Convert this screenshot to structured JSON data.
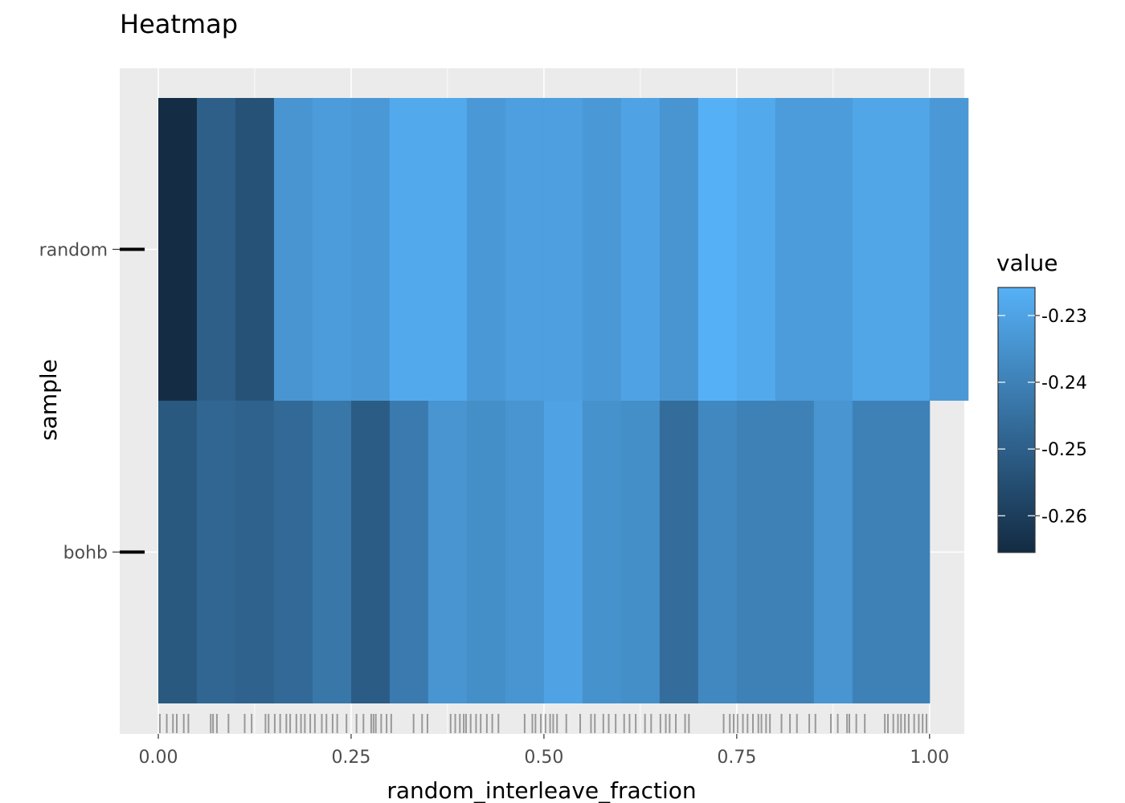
{
  "chart_data": {
    "type": "heatmap",
    "title": "Heatmap",
    "xlabel": "random_interleave_fraction",
    "ylabel": "sample",
    "x_ticks": [
      0.0,
      0.25,
      0.5,
      0.75,
      1.0
    ],
    "x_tick_labels": [
      "0.00",
      "0.25",
      "0.50",
      "0.75",
      "1.00"
    ],
    "xlim": [
      -0.05,
      1.045
    ],
    "categories": [
      "bohb",
      "random"
    ],
    "tile_width": 0.05,
    "grid": true,
    "legend": {
      "title": "value",
      "placement": "right",
      "range": [
        -0.2655,
        -0.2258
      ],
      "ticks": [
        -0.23,
        -0.24,
        -0.25,
        -0.26
      ],
      "tick_labels": [
        "-0.23",
        "-0.24",
        "-0.25",
        "-0.26"
      ],
      "color_low": "#132B43",
      "color_high": "#56B1F7"
    },
    "series": [
      {
        "name": "random",
        "x": [
          0.0,
          0.05,
          0.1,
          0.15,
          0.2,
          0.25,
          0.3,
          0.35,
          0.4,
          0.45,
          0.5,
          0.55,
          0.6,
          0.65,
          0.7,
          0.75,
          0.8,
          0.85,
          0.9,
          0.95,
          1.0
        ],
        "values": [
          -0.265,
          -0.25,
          -0.254,
          -0.234,
          -0.232,
          -0.233,
          -0.228,
          -0.228,
          -0.233,
          -0.231,
          -0.231,
          -0.233,
          -0.23,
          -0.234,
          -0.226,
          -0.228,
          -0.232,
          -0.232,
          -0.229,
          -0.229,
          -0.233
        ]
      },
      {
        "name": "bohb",
        "x": [
          0.0,
          0.05,
          0.1,
          0.15,
          0.2,
          0.25,
          0.3,
          0.35,
          0.4,
          0.45,
          0.5,
          0.55,
          0.6,
          0.65,
          0.7,
          0.75,
          0.8,
          0.85,
          0.9,
          0.95
        ],
        "values": [
          -0.252,
          -0.248,
          -0.249,
          -0.247,
          -0.243,
          -0.251,
          -0.242,
          -0.234,
          -0.236,
          -0.234,
          -0.23,
          -0.235,
          -0.236,
          -0.246,
          -0.238,
          -0.24,
          -0.24,
          -0.234,
          -0.24,
          -0.24
        ]
      }
    ],
    "rug_x": [
      0.002,
      0.011,
      0.019,
      0.024,
      0.033,
      0.039,
      0.068,
      0.071,
      0.076,
      0.091,
      0.112,
      0.121,
      0.139,
      0.143,
      0.151,
      0.158,
      0.166,
      0.171,
      0.179,
      0.185,
      0.19,
      0.197,
      0.203,
      0.212,
      0.218,
      0.226,
      0.232,
      0.244,
      0.257,
      0.266,
      0.276,
      0.279,
      0.282,
      0.289,
      0.296,
      0.302,
      0.331,
      0.342,
      0.349,
      0.379,
      0.385,
      0.391,
      0.396,
      0.399,
      0.405,
      0.412,
      0.418,
      0.426,
      0.433,
      0.441,
      0.475,
      0.485,
      0.489,
      0.496,
      0.502,
      0.508,
      0.512,
      0.517,
      0.529,
      0.547,
      0.561,
      0.566,
      0.577,
      0.584,
      0.593,
      0.604,
      0.611,
      0.619,
      0.631,
      0.639,
      0.651,
      0.658,
      0.663,
      0.671,
      0.683,
      0.688,
      0.733,
      0.741,
      0.746,
      0.751,
      0.758,
      0.764,
      0.771,
      0.778,
      0.782,
      0.788,
      0.793,
      0.808,
      0.819,
      0.828,
      0.844,
      0.852,
      0.872,
      0.881,
      0.893,
      0.896,
      0.905,
      0.916,
      0.942,
      0.946,
      0.953,
      0.959,
      0.963,
      0.968,
      0.973,
      0.98,
      0.986,
      0.991,
      0.996
    ]
  }
}
